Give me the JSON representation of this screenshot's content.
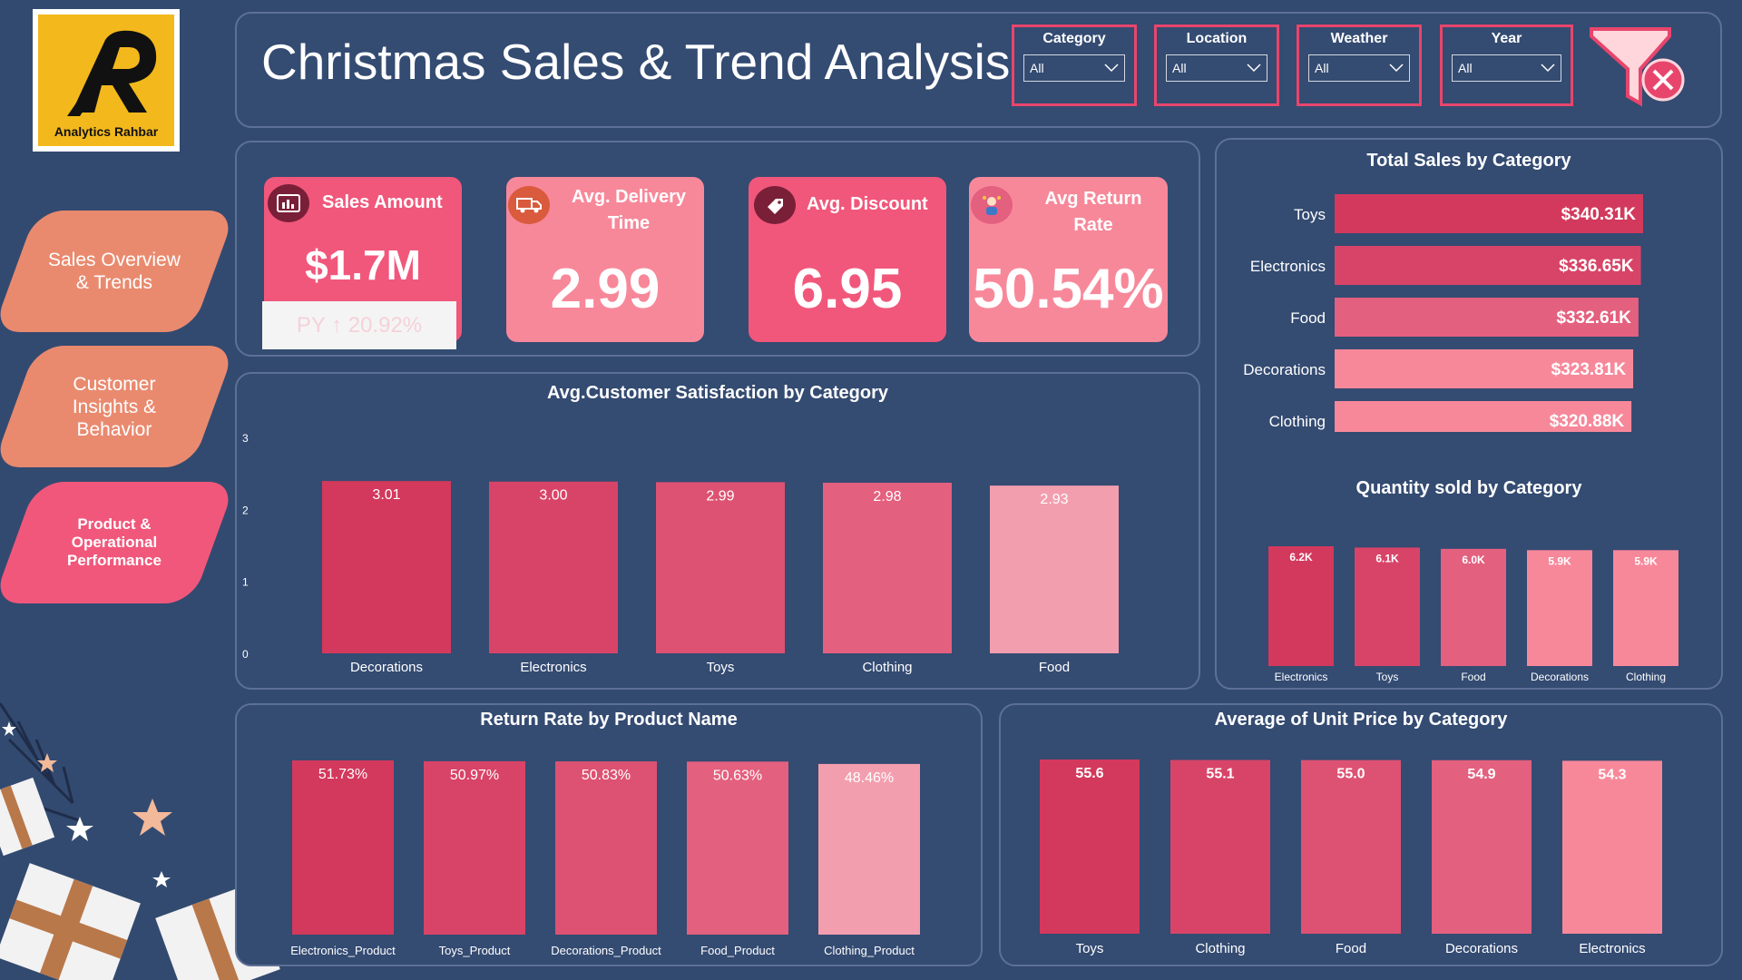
{
  "header": {
    "title": "Christmas Sales & Trend Analysis",
    "logo_text": "Analytics Rahbar"
  },
  "nav": [
    {
      "label_lines": [
        "Sales Overview",
        "& Trends"
      ]
    },
    {
      "label_lines": [
        "Customer",
        "Insights &",
        "Behavior"
      ]
    },
    {
      "label_lines": [
        "Product &",
        "Operational",
        "Performance"
      ]
    }
  ],
  "slicers": [
    {
      "label": "Category",
      "value": "All"
    },
    {
      "label": "Location",
      "value": "All"
    },
    {
      "label": "Weather",
      "value": "All"
    },
    {
      "label": "Year",
      "value": "All"
    }
  ],
  "kpis": {
    "sales_amount": {
      "label": "Sales Amount",
      "value": "$1.7M",
      "sub": "PY ↑ 20.92%"
    },
    "delivery": {
      "label_lines": [
        "Avg. Delivery",
        "Time"
      ],
      "value": "2.99"
    },
    "discount": {
      "label": "Avg. Discount",
      "value": "6.95"
    },
    "return_rate": {
      "label_lines": [
        "Avg Return",
        "Rate"
      ],
      "value": "50.54%"
    }
  },
  "colors": {
    "deep": "#d3395c",
    "mid1": "#d84468",
    "mid2": "#dd5272",
    "mid3": "#e4607f",
    "light": "#f39eae",
    "pink": "#f7889a"
  },
  "chart_data": [
    {
      "type": "bar",
      "title": "Avg.Customer Satisfaction by Category",
      "categories": [
        "Decorations",
        "Electronics",
        "Toys",
        "Clothing",
        "Food"
      ],
      "values": [
        3.01,
        3.0,
        2.99,
        2.98,
        2.93
      ],
      "labels": [
        "3.01",
        "3.00",
        "2.99",
        "2.98",
        "2.93"
      ],
      "yticks": [
        0,
        1,
        2,
        3
      ],
      "ylim": [
        0,
        3.1
      ]
    },
    {
      "type": "bar",
      "orientation": "horizontal",
      "title": "Total Sales by Category",
      "categories": [
        "Toys",
        "Electronics",
        "Food",
        "Decorations",
        "Clothing"
      ],
      "values": [
        340.31,
        336.65,
        332.61,
        323.81,
        320.88
      ],
      "labels": [
        "$340.31K",
        "$336.65K",
        "$332.61K",
        "$323.81K",
        "$320.88K"
      ],
      "unit": "K$"
    },
    {
      "type": "bar",
      "title": "Quantity sold by Category",
      "categories": [
        "Electronics",
        "Toys",
        "Food",
        "Decorations",
        "Clothing"
      ],
      "values": [
        6.2,
        6.1,
        6.0,
        5.9,
        5.9
      ],
      "labels": [
        "6.2K",
        "6.1K",
        "6.0K",
        "5.9K",
        "5.9K"
      ]
    },
    {
      "type": "bar",
      "title": "Return Rate by Product Name",
      "categories": [
        "Electronics_Product",
        "Toys_Product",
        "Decorations_Product",
        "Food_Product",
        "Clothing_Product"
      ],
      "values": [
        51.73,
        50.97,
        50.83,
        50.63,
        48.46
      ],
      "labels": [
        "51.73%",
        "50.97%",
        "50.83%",
        "50.63%",
        "48.46%"
      ]
    },
    {
      "type": "bar",
      "title": "Average of Unit Price by Category",
      "categories": [
        "Toys",
        "Clothing",
        "Food",
        "Decorations",
        "Electronics"
      ],
      "values": [
        55.6,
        55.1,
        55.0,
        54.9,
        54.3
      ],
      "labels": [
        "55.6",
        "55.1",
        "55.0",
        "54.9",
        "54.3"
      ]
    }
  ]
}
